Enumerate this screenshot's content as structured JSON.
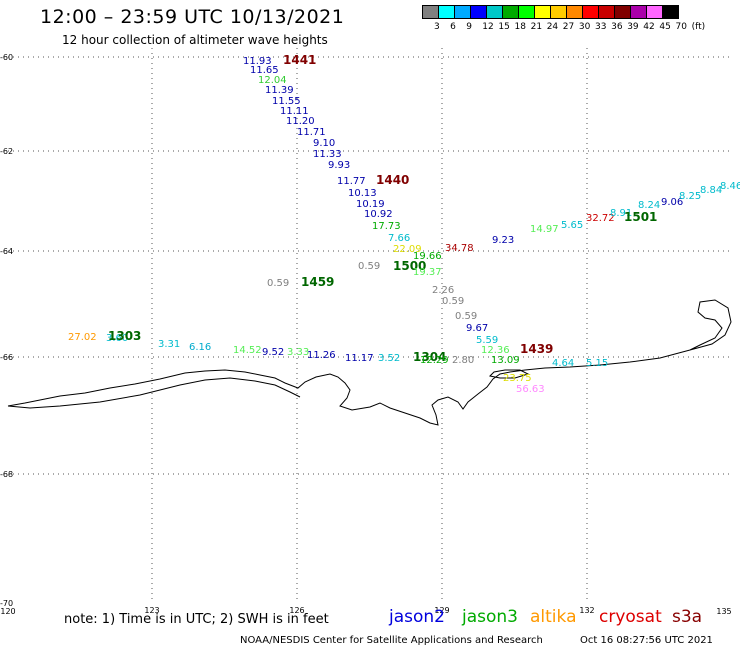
{
  "header": {
    "title": "12:00 – 23:59 UTC 10/13/2021",
    "subtitle": "12 hour collection of altimeter wave heights"
  },
  "legend": {
    "colors": [
      "#808080",
      "#00ffff",
      "#00aaff",
      "#0000ff",
      "#00c8c8",
      "#00aa00",
      "#00ff00",
      "#ffff00",
      "#ffcc00",
      "#ff8800",
      "#ff0000",
      "#c80000",
      "#800000",
      "#aa00aa",
      "#ff66ff",
      "#000000"
    ],
    "labels": [
      "3",
      "6",
      "9",
      "12",
      "15",
      "18",
      "21",
      "24",
      "27",
      "30",
      "33",
      "36",
      "39",
      "42",
      "45",
      "70",
      "(ft)"
    ]
  },
  "axes": {
    "lon_labels": [
      "120",
      "123",
      "126",
      "129",
      "132",
      "135"
    ],
    "lat_labels": [
      "-60",
      "-62",
      "-64",
      "-66",
      "-68",
      "-70"
    ]
  },
  "observations": [
    {
      "text": "11.93",
      "color": "#0000aa"
    },
    {
      "text": "1441",
      "color": "#800000",
      "bold": true
    },
    {
      "text": "11.65",
      "color": "#0000aa"
    },
    {
      "text": "12.04",
      "color": "#33cc33"
    },
    {
      "text": "11.39",
      "color": "#0000aa"
    },
    {
      "text": "11.55",
      "color": "#0000aa"
    },
    {
      "text": "11.11",
      "color": "#0000aa"
    },
    {
      "text": "11.20",
      "color": "#0000aa"
    },
    {
      "text": "11.71",
      "color": "#0000aa"
    },
    {
      "text": "9.10",
      "color": "#0000aa"
    },
    {
      "text": "11.33",
      "color": "#0000aa"
    },
    {
      "text": "9.93",
      "color": "#0000aa"
    },
    {
      "text": "11.77",
      "color": "#0000aa"
    },
    {
      "text": "1440",
      "color": "#800000",
      "bold": true
    },
    {
      "text": "10.13",
      "color": "#0000aa"
    },
    {
      "text": "10.19",
      "color": "#0000aa"
    },
    {
      "text": "10.92",
      "color": "#0000aa"
    },
    {
      "text": "17.73",
      "color": "#00aa00"
    },
    {
      "text": "7.66",
      "color": "#00bbcc"
    },
    {
      "text": "22.09",
      "color": "#dddd00"
    },
    {
      "text": "34.78",
      "color": "#aa0000"
    },
    {
      "text": "9.23",
      "color": "#0000aa"
    },
    {
      "text": "14.97",
      "color": "#55ee55"
    },
    {
      "text": "5.65",
      "color": "#00bbcc"
    },
    {
      "text": "32.72",
      "color": "#cc0000"
    },
    {
      "text": "8.91",
      "color": "#00bbcc"
    },
    {
      "text": "1501",
      "color": "#006600",
      "bold": true
    },
    {
      "text": "8.24",
      "color": "#00bbcc"
    },
    {
      "text": "9.06",
      "color": "#0000aa"
    },
    {
      "text": "8.25",
      "color": "#00bbcc"
    },
    {
      "text": "8.84",
      "color": "#00bbcc"
    },
    {
      "text": "8.46",
      "color": "#00bbcc"
    },
    {
      "text": "0.59",
      "color": "#808080"
    },
    {
      "text": "1500",
      "color": "#006600",
      "bold": true
    },
    {
      "text": "19.66",
      "color": "#00aa00"
    },
    {
      "text": "19.37",
      "color": "#55ee55"
    },
    {
      "text": "0.59",
      "color": "#808080"
    },
    {
      "text": "1459",
      "color": "#006600",
      "bold": true
    },
    {
      "text": "2.26",
      "color": "#808080"
    },
    {
      "text": "0.59",
      "color": "#808080"
    },
    {
      "text": "0.59",
      "color": "#808080"
    },
    {
      "text": "9.67",
      "color": "#0000aa"
    },
    {
      "text": "5.59",
      "color": "#00bbcc"
    },
    {
      "text": "12.36",
      "color": "#55ee55"
    },
    {
      "text": "1439",
      "color": "#800000",
      "bold": true
    },
    {
      "text": "27.02",
      "color": "#ff9900"
    },
    {
      "text": "3.60",
      "color": "#00bbcc"
    },
    {
      "text": "1303",
      "color": "#006600",
      "bold": true
    },
    {
      "text": "3.31",
      "color": "#00bbcc"
    },
    {
      "text": "6.16",
      "color": "#00aacc"
    },
    {
      "text": "14.52",
      "color": "#55ee55"
    },
    {
      "text": "9.52",
      "color": "#0000aa"
    },
    {
      "text": "3.33",
      "color": "#55ee55"
    },
    {
      "text": "11.26",
      "color": "#0000aa"
    },
    {
      "text": "11.17",
      "color": "#0000aa"
    },
    {
      "text": "3.52",
      "color": "#00bbcc"
    },
    {
      "text": "1304",
      "color": "#006600",
      "bold": true
    },
    {
      "text": "12.29",
      "color": "#00aa00"
    },
    {
      "text": "2.80",
      "color": "#808080"
    },
    {
      "text": "13.09",
      "color": "#00aa00"
    },
    {
      "text": "4.64",
      "color": "#00bbcc"
    },
    {
      "text": "5.15",
      "color": "#00bbcc"
    },
    {
      "text": "23.75",
      "color": "#dddd00"
    },
    {
      "text": "56.63",
      "color": "#ff88ff"
    }
  ],
  "footer": {
    "note": "note:  1) Time is in UTC; 2) SWH is in feet",
    "satellites": [
      {
        "name": "jason2",
        "color": "#0000dd"
      },
      {
        "name": "jason3",
        "color": "#00aa00"
      },
      {
        "name": "altika",
        "color": "#ff9900"
      },
      {
        "name": "cryosat",
        "color": "#dd0000"
      },
      {
        "name": "s3a",
        "color": "#880000"
      }
    ],
    "credit": "NOAA/NESDIS Center for Satellite Applications and Research",
    "timestamp": "Oct 16 08:27:56 UTC 2021"
  }
}
